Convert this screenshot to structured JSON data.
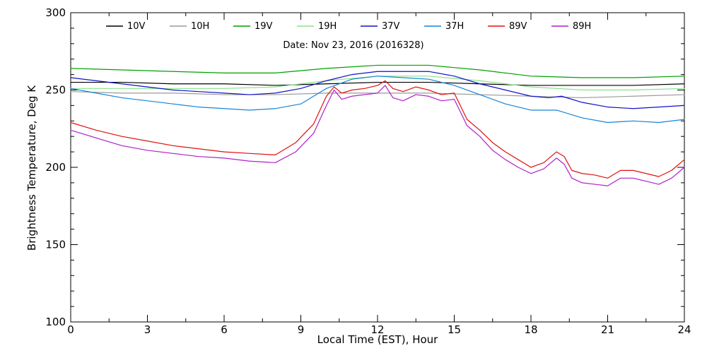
{
  "chart_data": {
    "type": "line",
    "annotation": "Date: Nov 23, 2016 (2016328)",
    "xlabel": "Local Time (EST), Hour",
    "ylabel": "Brightness Temperature, Deg K",
    "xlim": [
      0,
      24
    ],
    "ylim": [
      100,
      300
    ],
    "xticks": [
      0,
      3,
      6,
      9,
      12,
      15,
      18,
      21,
      24
    ],
    "yticks": [
      100,
      150,
      200,
      250,
      300
    ],
    "grid": false,
    "legend_position": "top",
    "series": [
      {
        "name": "10V",
        "color": "#000000",
        "points": [
          [
            0,
            255
          ],
          [
            2,
            255
          ],
          [
            4,
            254
          ],
          [
            6,
            254
          ],
          [
            8,
            253
          ],
          [
            10,
            254
          ],
          [
            12,
            255
          ],
          [
            14,
            255
          ],
          [
            16,
            254
          ],
          [
            18,
            253
          ],
          [
            20,
            253
          ],
          [
            22,
            253
          ],
          [
            24,
            254
          ]
        ]
      },
      {
        "name": "10H",
        "color": "#9a9a9a",
        "points": [
          [
            0,
            249
          ],
          [
            2,
            248
          ],
          [
            4,
            248
          ],
          [
            6,
            247
          ],
          [
            8,
            247
          ],
          [
            10,
            248
          ],
          [
            12,
            248
          ],
          [
            14,
            248
          ],
          [
            16,
            247
          ],
          [
            18,
            246
          ],
          [
            20,
            245
          ],
          [
            22,
            246
          ],
          [
            24,
            247
          ]
        ]
      },
      {
        "name": "19V",
        "color": "#00a000",
        "points": [
          [
            0,
            264
          ],
          [
            2,
            263
          ],
          [
            4,
            262
          ],
          [
            6,
            261
          ],
          [
            8,
            261
          ],
          [
            10,
            264
          ],
          [
            12,
            266
          ],
          [
            14,
            266
          ],
          [
            16,
            263
          ],
          [
            18,
            259
          ],
          [
            20,
            258
          ],
          [
            22,
            258
          ],
          [
            24,
            259
          ]
        ]
      },
      {
        "name": "19H",
        "color": "#8be28b",
        "points": [
          [
            0,
            251
          ],
          [
            2,
            251
          ],
          [
            4,
            251
          ],
          [
            6,
            251
          ],
          [
            8,
            252
          ],
          [
            10,
            256
          ],
          [
            12,
            259
          ],
          [
            14,
            259
          ],
          [
            16,
            256
          ],
          [
            18,
            252
          ],
          [
            20,
            250
          ],
          [
            22,
            250
          ],
          [
            24,
            251
          ]
        ]
      },
      {
        "name": "37V",
        "color": "#1010c8",
        "points": [
          [
            0,
            258
          ],
          [
            1,
            256
          ],
          [
            2,
            254
          ],
          [
            3,
            252
          ],
          [
            4,
            250
          ],
          [
            5,
            249
          ],
          [
            6,
            248
          ],
          [
            7,
            247
          ],
          [
            8,
            248
          ],
          [
            9,
            251
          ],
          [
            10,
            256
          ],
          [
            11,
            260
          ],
          [
            12,
            262
          ],
          [
            13,
            262
          ],
          [
            14,
            262
          ],
          [
            15,
            259
          ],
          [
            16,
            254
          ],
          [
            17,
            250
          ],
          [
            18,
            246
          ],
          [
            18.7,
            245
          ],
          [
            19.2,
            246
          ],
          [
            20,
            242
          ],
          [
            21,
            239
          ],
          [
            22,
            238
          ],
          [
            23,
            239
          ],
          [
            24,
            240
          ]
        ]
      },
      {
        "name": "37H",
        "color": "#1585d8",
        "points": [
          [
            0,
            251
          ],
          [
            1,
            248
          ],
          [
            2,
            245
          ],
          [
            3,
            243
          ],
          [
            4,
            241
          ],
          [
            5,
            239
          ],
          [
            6,
            238
          ],
          [
            7,
            237
          ],
          [
            8,
            238
          ],
          [
            9,
            241
          ],
          [
            10,
            251
          ],
          [
            11,
            257
          ],
          [
            12,
            259
          ],
          [
            13,
            258
          ],
          [
            14,
            257
          ],
          [
            15,
            253
          ],
          [
            16,
            247
          ],
          [
            17,
            241
          ],
          [
            18,
            237
          ],
          [
            19,
            237
          ],
          [
            20,
            232
          ],
          [
            21,
            229
          ],
          [
            22,
            230
          ],
          [
            23,
            229
          ],
          [
            24,
            231
          ]
        ]
      },
      {
        "name": "89V",
        "color": "#e01010",
        "points": [
          [
            0,
            229
          ],
          [
            1,
            224
          ],
          [
            2,
            220
          ],
          [
            3,
            217
          ],
          [
            4,
            214
          ],
          [
            5,
            212
          ],
          [
            6,
            210
          ],
          [
            7,
            209
          ],
          [
            8,
            208
          ],
          [
            8.8,
            216
          ],
          [
            9.5,
            228
          ],
          [
            10,
            246
          ],
          [
            10.3,
            252
          ],
          [
            10.6,
            248
          ],
          [
            11,
            250
          ],
          [
            11.5,
            251
          ],
          [
            12,
            253
          ],
          [
            12.3,
            256
          ],
          [
            12.6,
            251
          ],
          [
            13,
            249
          ],
          [
            13.5,
            252
          ],
          [
            14,
            250
          ],
          [
            14.5,
            247
          ],
          [
            15,
            248
          ],
          [
            15.5,
            231
          ],
          [
            16,
            224
          ],
          [
            16.5,
            216
          ],
          [
            17,
            210
          ],
          [
            17.5,
            205
          ],
          [
            18,
            200
          ],
          [
            18.5,
            203
          ],
          [
            19,
            210
          ],
          [
            19.3,
            207
          ],
          [
            19.6,
            198
          ],
          [
            20,
            196
          ],
          [
            20.5,
            195
          ],
          [
            21,
            193
          ],
          [
            21.5,
            198
          ],
          [
            22,
            198
          ],
          [
            22.5,
            196
          ],
          [
            23,
            194
          ],
          [
            23.5,
            198
          ],
          [
            24,
            205
          ]
        ]
      },
      {
        "name": "89H",
        "color": "#b020c8",
        "points": [
          [
            0,
            224
          ],
          [
            1,
            219
          ],
          [
            2,
            214
          ],
          [
            3,
            211
          ],
          [
            4,
            209
          ],
          [
            5,
            207
          ],
          [
            6,
            206
          ],
          [
            7,
            204
          ],
          [
            8,
            203
          ],
          [
            8.8,
            210
          ],
          [
            9.5,
            222
          ],
          [
            10,
            240
          ],
          [
            10.3,
            250
          ],
          [
            10.6,
            244
          ],
          [
            11,
            246
          ],
          [
            11.5,
            247
          ],
          [
            12,
            248
          ],
          [
            12.3,
            253
          ],
          [
            12.6,
            245
          ],
          [
            13,
            243
          ],
          [
            13.5,
            247
          ],
          [
            14,
            246
          ],
          [
            14.5,
            243
          ],
          [
            15,
            244
          ],
          [
            15.5,
            227
          ],
          [
            16,
            220
          ],
          [
            16.5,
            211
          ],
          [
            17,
            205
          ],
          [
            17.5,
            200
          ],
          [
            18,
            196
          ],
          [
            18.5,
            199
          ],
          [
            19,
            206
          ],
          [
            19.3,
            202
          ],
          [
            19.6,
            193
          ],
          [
            20,
            190
          ],
          [
            20.5,
            189
          ],
          [
            21,
            188
          ],
          [
            21.5,
            193
          ],
          [
            22,
            193
          ],
          [
            22.5,
            191
          ],
          [
            23,
            189
          ],
          [
            23.5,
            193
          ],
          [
            24,
            200
          ]
        ]
      }
    ]
  }
}
